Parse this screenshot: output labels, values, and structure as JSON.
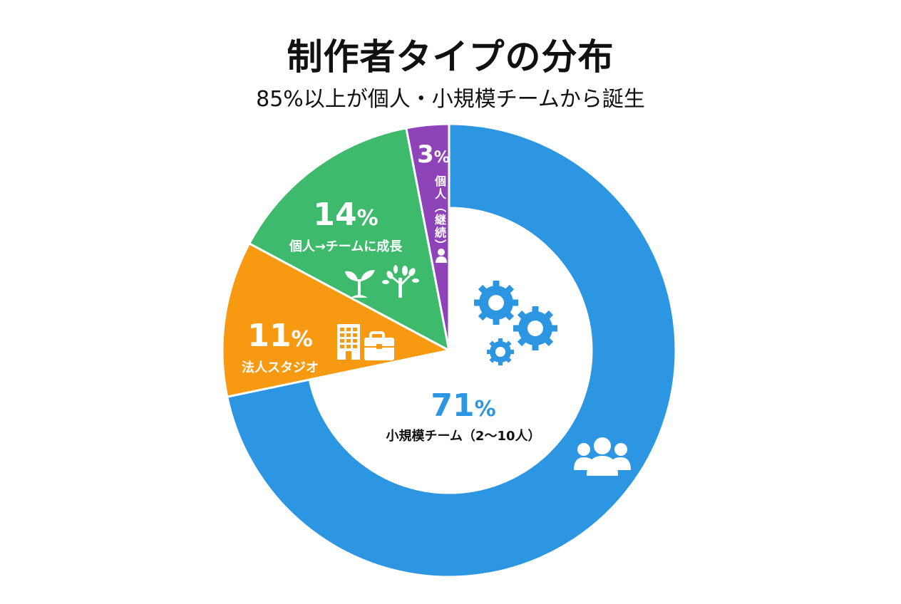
{
  "title": "制作者タイプの分布",
  "subtitle": "85%以上が個人・小規模チームから誕生",
  "colors": {
    "small_team": "#2d96e3",
    "growth": "#3dba6b",
    "studio": "#f79a12",
    "individual": "#8e44b8",
    "background": "#ffffff",
    "text": "#111111"
  },
  "segments": {
    "small_team": {
      "value": "71",
      "unit": "%",
      "label": "小規模チーム（2〜10人）",
      "icons": [
        "gears-icon",
        "group-users-icon"
      ]
    },
    "growth": {
      "value": "14",
      "unit": "%",
      "label": "個人→チームに成長",
      "icons": [
        "sprout-icon",
        "tree-icon"
      ]
    },
    "studio": {
      "value": "11",
      "unit": "%",
      "label": "法人スタジオ",
      "icons": [
        "building-icon",
        "briefcase-icon"
      ]
    },
    "individual": {
      "value": "3",
      "unit": "%",
      "label": "個人（継続）",
      "icons": [
        "person-icon"
      ]
    }
  },
  "chart_data": {
    "type": "pie",
    "title": "制作者タイプの分布",
    "subtitle": "85%以上が個人・小規模チームから誕生",
    "categories": [
      "小規模チーム（2〜10人）",
      "個人→チームに成長",
      "法人スタジオ",
      "個人（継続）"
    ],
    "values": [
      71,
      14,
      11,
      3
    ],
    "unit": "%",
    "colors": [
      "#2d96e3",
      "#3dba6b",
      "#f79a12",
      "#8e44b8"
    ],
    "start_angle": "12 o'clock, clockwise",
    "notes": "Largest segment (71%) drawn as donut ring; other segments are full wedges",
    "legend": "none (inline labels)"
  }
}
